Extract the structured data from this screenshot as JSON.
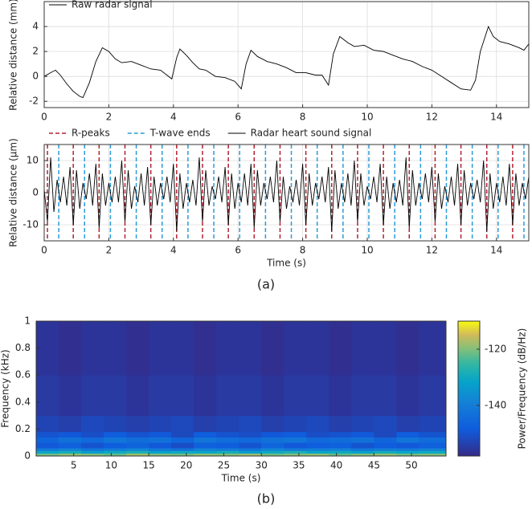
{
  "chart_data": [
    {
      "type": "line",
      "ylabel": "Relative distance (mm)",
      "xlim": [
        0,
        15
      ],
      "ylim": [
        -2.5,
        6
      ],
      "xticks": [
        0,
        2,
        4,
        6,
        8,
        10,
        12,
        14
      ],
      "yticks": [
        -2,
        0,
        2,
        4
      ],
      "grid": true,
      "legend": "upper left",
      "series": [
        {
          "name": "Raw radar signal",
          "color": "#000000",
          "x": [
            0,
            0.2,
            0.35,
            0.5,
            0.7,
            0.9,
            1.1,
            1.2,
            1.4,
            1.6,
            1.8,
            2.0,
            2.2,
            2.4,
            2.7,
            3.0,
            3.3,
            3.6,
            3.8,
            3.95,
            4.1,
            4.2,
            4.4,
            4.6,
            4.8,
            5.0,
            5.3,
            5.6,
            5.9,
            6.1,
            6.25,
            6.4,
            6.6,
            6.9,
            7.2,
            7.5,
            7.8,
            8.1,
            8.4,
            8.6,
            8.8,
            8.95,
            9.15,
            9.4,
            9.6,
            9.9,
            10.2,
            10.5,
            10.8,
            11.1,
            11.4,
            11.7,
            12.0,
            12.3,
            12.6,
            12.9,
            13.2,
            13.35,
            13.5,
            13.75,
            13.9,
            14.1,
            14.4,
            14.7,
            14.85,
            15.0
          ],
          "values": [
            0,
            0.3,
            0.5,
            0.1,
            -0.6,
            -1.2,
            -1.6,
            -1.7,
            -0.5,
            1.2,
            2.3,
            2.0,
            1.4,
            1.1,
            1.2,
            0.9,
            0.6,
            0.5,
            0.1,
            -0.2,
            1.5,
            2.2,
            1.7,
            1.1,
            0.6,
            0.5,
            0.0,
            -0.1,
            -0.4,
            -1.0,
            1.0,
            2.1,
            1.6,
            1.2,
            1.0,
            0.7,
            0.3,
            0.3,
            0.1,
            0.1,
            -0.7,
            1.8,
            3.2,
            2.7,
            2.4,
            2.5,
            2.1,
            2.0,
            1.7,
            1.4,
            1.2,
            0.8,
            0.5,
            0.0,
            -0.5,
            -1.0,
            -1.1,
            -0.3,
            2.0,
            4.0,
            3.2,
            2.8,
            2.6,
            2.3,
            2.1,
            2.6
          ]
        }
      ]
    },
    {
      "type": "line",
      "xlabel": "Time (s)",
      "ylabel": "Relative distance (µm)",
      "xlim": [
        0,
        15
      ],
      "ylim": [
        -15,
        15
      ],
      "xticks": [
        0,
        2,
        4,
        6,
        8,
        10,
        12,
        14
      ],
      "yticks": [
        -10,
        0,
        10
      ],
      "grid": true,
      "legend": "above",
      "series": [
        {
          "name": "R-peaks",
          "color": "#b22234",
          "type": "vline",
          "style": "dashed",
          "x": [
            0.1,
            0.9,
            1.7,
            2.5,
            3.3,
            4.1,
            4.9,
            5.7,
            6.5,
            7.3,
            8.1,
            8.9,
            9.7,
            10.5,
            11.3,
            12.1,
            12.9,
            13.7,
            14.5
          ]
        },
        {
          "name": "T-wave ends",
          "color": "#2e9bd6",
          "type": "vline",
          "style": "dashed",
          "x": [
            0.45,
            1.25,
            2.05,
            2.85,
            3.65,
            4.45,
            5.25,
            6.05,
            6.85,
            7.65,
            8.45,
            9.25,
            10.05,
            10.85,
            11.65,
            12.45,
            13.25,
            14.05,
            14.85
          ]
        },
        {
          "name": "Radar heart sound signal",
          "color": "#000000",
          "x": [
            0,
            0.1,
            0.2,
            0.3,
            0.4,
            0.5,
            0.6,
            0.7,
            0.8,
            0.9,
            1.0,
            1.1,
            1.2,
            1.3,
            1.4,
            1.5,
            1.6,
            1.7,
            1.8,
            1.9,
            2.0,
            2.1,
            2.2,
            2.3,
            2.4,
            2.5,
            2.6,
            2.7,
            2.8,
            2.9,
            3.0,
            3.1,
            3.2,
            3.3,
            3.4,
            3.5,
            3.6,
            3.7,
            3.8,
            3.9,
            4.0,
            4.1,
            4.2,
            4.3,
            4.4,
            4.5,
            4.6,
            4.7,
            4.8,
            4.9,
            5.0,
            5.1,
            5.2,
            5.3,
            5.4,
            5.5,
            5.6,
            5.7,
            5.8,
            5.9,
            6.0,
            6.1,
            6.2,
            6.3,
            6.4,
            6.5,
            6.6,
            6.7,
            6.8,
            6.9,
            7.0,
            7.1,
            7.2,
            7.3,
            7.4,
            7.5,
            7.6,
            7.7,
            7.8,
            7.9,
            8.0,
            8.1,
            8.2,
            8.3,
            8.4,
            8.5,
            8.6,
            8.7,
            8.8,
            8.9,
            9.0,
            9.1,
            9.2,
            9.3,
            9.4,
            9.5,
            9.6,
            9.7,
            9.8,
            9.9,
            10.0,
            10.1,
            10.2,
            10.3,
            10.4,
            10.5,
            10.6,
            10.7,
            10.8,
            10.9,
            11.0,
            11.1,
            11.2,
            11.3,
            11.4,
            11.5,
            11.6,
            11.7,
            11.8,
            11.9,
            12.0,
            12.1,
            12.2,
            12.3,
            12.4,
            12.5,
            12.6,
            12.7,
            12.8,
            12.9,
            13.0,
            13.1,
            13.2,
            13.3,
            13.4,
            13.5,
            13.6,
            13.7,
            13.8,
            13.9,
            14.0,
            14.1,
            14.2,
            14.3,
            14.4,
            14.5,
            14.6,
            14.7,
            14.8,
            14.9,
            15.0
          ],
          "values": [
            1,
            -9,
            11,
            -6,
            4,
            -3,
            5,
            -4,
            8,
            -10,
            7,
            -5,
            3,
            -2,
            6,
            -4,
            9,
            -11,
            6,
            -4,
            3,
            -3,
            5,
            -3,
            10,
            -9,
            7,
            -5,
            2,
            -3,
            6,
            -4,
            8,
            -10,
            5,
            -4,
            3,
            -2,
            5,
            -3,
            9,
            -12,
            6,
            -5,
            3,
            -3,
            4,
            -4,
            11,
            -9,
            7,
            -4,
            2,
            -2,
            5,
            -3,
            8,
            -10,
            6,
            -5,
            3,
            -3,
            6,
            -4,
            9,
            -11,
            7,
            -4,
            3,
            -2,
            5,
            -3,
            10,
            -9,
            5,
            -5,
            2,
            -3,
            4,
            -4,
            9,
            -10,
            6,
            -4,
            3,
            -2,
            5,
            -3,
            8,
            -12,
            7,
            -5,
            3,
            -3,
            6,
            -4,
            10,
            -9,
            6,
            -4,
            2,
            -2,
            5,
            -3,
            9,
            -10,
            5,
            -5,
            3,
            -3,
            4,
            -4,
            11,
            -11,
            7,
            -4,
            3,
            -2,
            6,
            -3,
            8,
            -9,
            6,
            -5,
            2,
            -3,
            5,
            -4,
            9,
            -10,
            7,
            -4,
            3,
            -2,
            4,
            -3,
            10,
            -12,
            6,
            -5,
            3,
            -3,
            5,
            -4,
            9,
            -10,
            6,
            -4,
            3,
            -2,
            5
          ]
        }
      ]
    },
    {
      "type": "heatmap",
      "xlabel": "Time (s)",
      "ylabel": "Frequency (kHz)",
      "xlim": [
        0,
        54.6
      ],
      "ylim": [
        0,
        1
      ],
      "xticks": [
        5,
        10,
        15,
        20,
        25,
        30,
        35,
        40,
        45,
        50
      ],
      "yticks": [
        0,
        0.2,
        0.4,
        0.6,
        0.8,
        1
      ],
      "colormap": "parula",
      "x_edges": [
        0,
        3,
        6,
        9,
        12,
        15,
        18,
        21,
        24,
        27,
        30,
        33,
        36,
        39,
        42,
        45,
        48,
        51,
        54.6
      ],
      "y_edges": [
        0,
        0.02,
        0.04,
        0.06,
        0.1,
        0.14,
        0.18,
        0.3,
        0.6,
        1
      ],
      "z": [
        [
          -121,
          -119,
          -120,
          -122,
          -118,
          -120,
          -121,
          -119,
          -120,
          -118,
          -121,
          -120,
          -119,
          -122,
          -120,
          -119,
          -121,
          -120
        ],
        [
          -131,
          -129,
          -133,
          -130,
          -128,
          -132,
          -130,
          -131,
          -129,
          -133,
          -130,
          -128,
          -131,
          -130,
          -132,
          -129,
          -131,
          -130
        ],
        [
          -141,
          -139,
          -142,
          -140,
          -138,
          -141,
          -143,
          -139,
          -140,
          -142,
          -138,
          -141,
          -140,
          -139,
          -142,
          -140,
          -141,
          -139
        ],
        [
          -149,
          -147,
          -150,
          -148,
          -146,
          -149,
          -151,
          -147,
          -148,
          -150,
          -146,
          -149,
          -148,
          -147,
          -150,
          -148,
          -149,
          -147
        ],
        [
          -146,
          -143,
          -145,
          -142,
          -144,
          -143,
          -146,
          -142,
          -144,
          -145,
          -143,
          -142,
          -145,
          -144,
          -143,
          -146,
          -142,
          -144
        ],
        [
          -150,
          -149,
          -151,
          -148,
          -150,
          -149,
          -152,
          -148,
          -150,
          -151,
          -149,
          -148,
          -151,
          -150,
          -149,
          -152,
          -148,
          -150
        ],
        [
          -153,
          -154,
          -152,
          -153,
          -154,
          -153,
          -152,
          -154,
          -153,
          -152,
          -154,
          -153,
          -152,
          -154,
          -153,
          -152,
          -154,
          -153
        ],
        [
          -155,
          -156,
          -155,
          -155,
          -156,
          -155,
          -155,
          -156,
          -155,
          -155,
          -156,
          -155,
          -155,
          -156,
          -155,
          -155,
          -156,
          -155
        ],
        [
          -156,
          -157,
          -156,
          -156,
          -157,
          -156,
          -156,
          -157,
          -156,
          -156,
          -157,
          -156,
          -156,
          -157,
          -156,
          -156,
          -157,
          -156
        ]
      ],
      "colorbar": {
        "label": "Power/Frequency (dB/Hz)",
        "clim": [
          -158,
          -110
        ],
        "ticks": [
          -120,
          -140
        ]
      }
    }
  ],
  "captions": [
    "(a)",
    "(b)"
  ]
}
